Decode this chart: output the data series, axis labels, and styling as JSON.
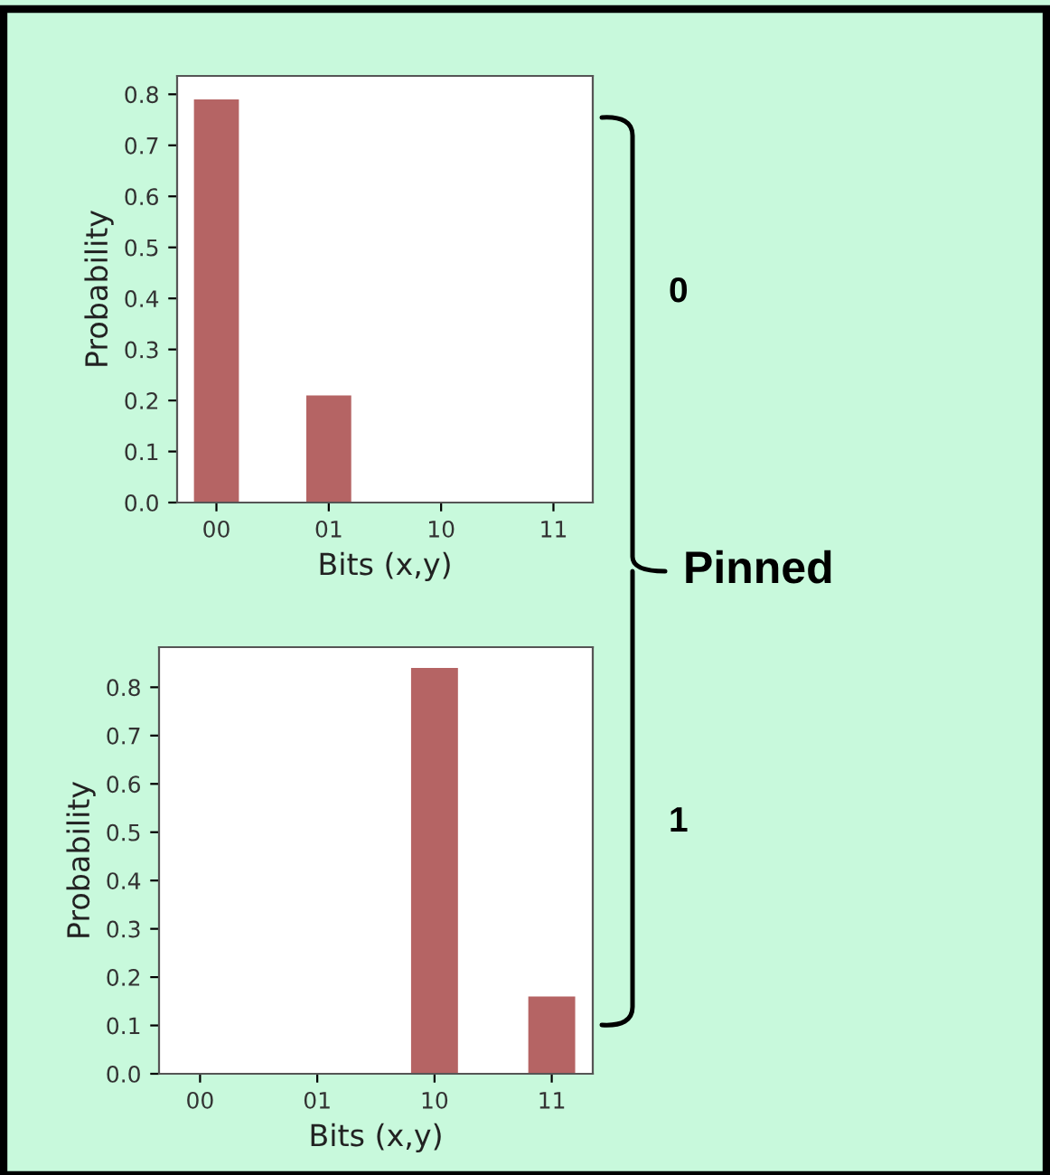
{
  "chart_data": [
    {
      "type": "bar",
      "categories": [
        "00",
        "01",
        "10",
        "11"
      ],
      "values": [
        0.79,
        0.21,
        0,
        0
      ],
      "color": "#b56464",
      "xlabel": "Bits (x,y)",
      "ylabel": "Probability",
      "ylim": [
        0,
        0.836
      ],
      "yticks": [
        {
          "value": 0,
          "label": "0.0"
        },
        0.1,
        0.2,
        0.3,
        0.4,
        0.5,
        0.6,
        0.7,
        0.8
      ],
      "grid": false,
      "annotations": [
        "0",
        "Pinned"
      ]
    },
    {
      "type": "bar",
      "categories": [
        "00",
        "01",
        "10",
        "11"
      ],
      "values": [
        0,
        0,
        0.84,
        0.16
      ],
      "color": "#b56464",
      "xlabel": "Bits (x,y)",
      "ylabel": "Probability",
      "ylim": [
        0,
        0.883
      ],
      "yticks": [
        {
          "value": 0,
          "label": "0.0"
        },
        0.1,
        0.2,
        0.3,
        0.4,
        0.5,
        0.6,
        0.7,
        0.8
      ],
      "grid": false,
      "annotations": [
        "1"
      ]
    }
  ]
}
